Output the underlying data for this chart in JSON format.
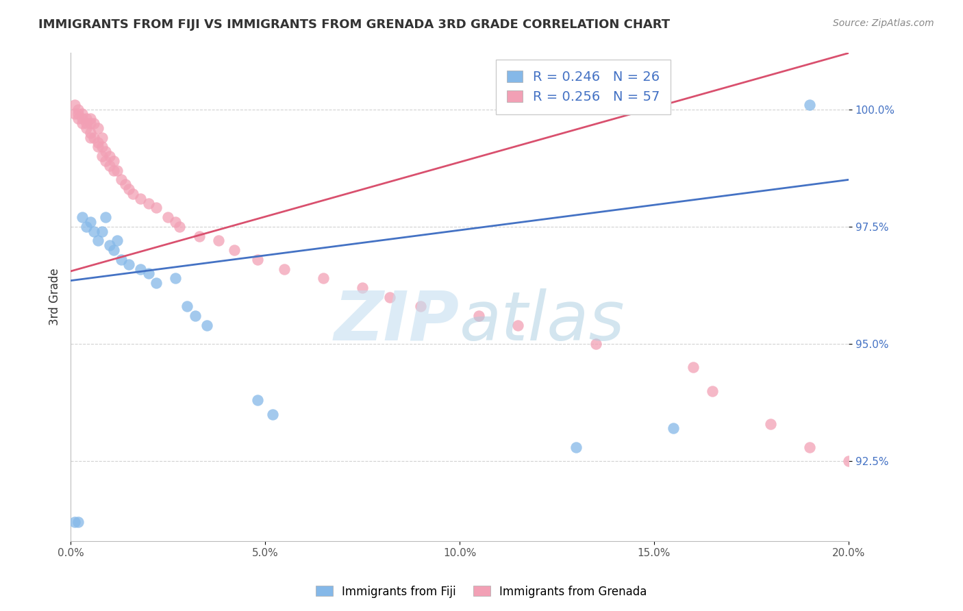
{
  "title": "IMMIGRANTS FROM FIJI VS IMMIGRANTS FROM GRENADA 3RD GRADE CORRELATION CHART",
  "source_text": "Source: ZipAtlas.com",
  "ylabel": "3rd Grade",
  "xlim": [
    0.0,
    0.2
  ],
  "ylim": [
    0.908,
    1.012
  ],
  "xtick_labels": [
    "0.0%",
    "5.0%",
    "10.0%",
    "15.0%",
    "20.0%"
  ],
  "xtick_vals": [
    0.0,
    0.05,
    0.1,
    0.15,
    0.2
  ],
  "ytick_labels": [
    "92.5%",
    "95.0%",
    "97.5%",
    "100.0%"
  ],
  "ytick_vals": [
    0.925,
    0.95,
    0.975,
    1.0
  ],
  "fiji_color": "#85b8e8",
  "grenada_color": "#f2a0b5",
  "fiji_line_color": "#4472c4",
  "grenada_line_color": "#d9506e",
  "fiji_R": 0.246,
  "fiji_N": 26,
  "grenada_R": 0.256,
  "grenada_N": 57,
  "fiji_line_x0": 0.0,
  "fiji_line_y0": 0.9635,
  "fiji_line_x1": 0.2,
  "fiji_line_y1": 0.985,
  "grenada_line_x0": 0.0,
  "grenada_line_y0": 0.9655,
  "grenada_line_x1": 0.2,
  "grenada_line_y1": 1.012,
  "fiji_x": [
    0.001,
    0.002,
    0.003,
    0.004,
    0.005,
    0.006,
    0.007,
    0.008,
    0.009,
    0.01,
    0.011,
    0.012,
    0.013,
    0.015,
    0.018,
    0.02,
    0.022,
    0.027,
    0.03,
    0.032,
    0.035,
    0.048,
    0.052,
    0.13,
    0.155,
    0.19
  ],
  "fiji_y": [
    0.912,
    0.912,
    0.977,
    0.975,
    0.976,
    0.974,
    0.972,
    0.974,
    0.977,
    0.971,
    0.97,
    0.972,
    0.968,
    0.967,
    0.966,
    0.965,
    0.963,
    0.964,
    0.958,
    0.956,
    0.954,
    0.938,
    0.935,
    0.928,
    0.932,
    1.001
  ],
  "grenada_x": [
    0.001,
    0.001,
    0.002,
    0.002,
    0.002,
    0.003,
    0.003,
    0.003,
    0.004,
    0.004,
    0.004,
    0.005,
    0.005,
    0.005,
    0.005,
    0.006,
    0.006,
    0.007,
    0.007,
    0.007,
    0.008,
    0.008,
    0.008,
    0.009,
    0.009,
    0.01,
    0.01,
    0.011,
    0.011,
    0.012,
    0.013,
    0.014,
    0.015,
    0.016,
    0.018,
    0.02,
    0.022,
    0.025,
    0.027,
    0.028,
    0.033,
    0.038,
    0.042,
    0.048,
    0.055,
    0.065,
    0.075,
    0.082,
    0.09,
    0.105,
    0.115,
    0.135,
    0.16,
    0.165,
    0.18,
    0.19,
    0.2
  ],
  "grenada_y": [
    1.001,
    0.999,
    1.0,
    0.999,
    0.998,
    0.999,
    0.998,
    0.997,
    0.998,
    0.997,
    0.996,
    0.998,
    0.997,
    0.995,
    0.994,
    0.997,
    0.994,
    0.996,
    0.993,
    0.992,
    0.994,
    0.992,
    0.99,
    0.991,
    0.989,
    0.99,
    0.988,
    0.989,
    0.987,
    0.987,
    0.985,
    0.984,
    0.983,
    0.982,
    0.981,
    0.98,
    0.979,
    0.977,
    0.976,
    0.975,
    0.973,
    0.972,
    0.97,
    0.968,
    0.966,
    0.964,
    0.962,
    0.96,
    0.958,
    0.956,
    0.954,
    0.95,
    0.945,
    0.94,
    0.933,
    0.928,
    0.925
  ],
  "background_color": "#ffffff",
  "grid_color": "#cccccc"
}
